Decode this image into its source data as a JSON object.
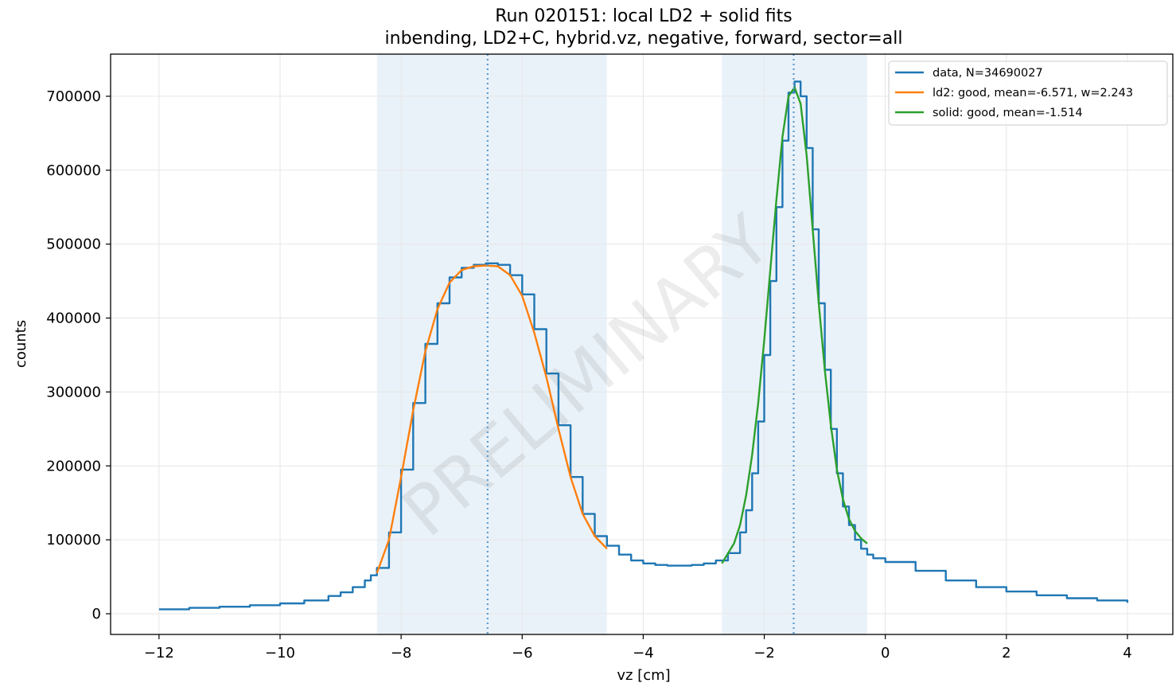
{
  "chart_data": {
    "type": "line",
    "title": "Run 020151: local LD2 + solid fits",
    "subtitle": "inbending, LD2+C, hybrid.vz, negative, forward, sector=all",
    "xlabel": "vz [cm]",
    "ylabel": "counts",
    "xlim": [
      -12.8,
      4.75
    ],
    "ylim": [
      -28000,
      757000
    ],
    "x_ticks": [
      -12,
      -10,
      -8,
      -6,
      -4,
      -2,
      0,
      2,
      4
    ],
    "x_tick_labels": [
      "−12",
      "−10",
      "−8",
      "−6",
      "−4",
      "−2",
      "0",
      "2",
      "4"
    ],
    "y_ticks": [
      0,
      100000,
      200000,
      300000,
      400000,
      500000,
      600000,
      700000
    ],
    "y_tick_labels": [
      "0",
      "100000",
      "200000",
      "300000",
      "400000",
      "500000",
      "600000",
      "700000"
    ],
    "grid": true,
    "legend_position": "top-right",
    "watermark": "PRELIMINARY",
    "shaded_regions": [
      {
        "x0": -8.4,
        "x1": -4.6,
        "color": "#dce9f5"
      },
      {
        "x0": -2.7,
        "x1": -0.3,
        "color": "#dce9f5"
      }
    ],
    "vlines": [
      {
        "x": -6.571,
        "color": "#5b9bd0"
      },
      {
        "x": -1.514,
        "color": "#5b9bd0"
      }
    ],
    "series": [
      {
        "name": "data, N=34690027",
        "color": "#1f77b4",
        "style": "step",
        "x": [
          -12,
          -11.5,
          -11,
          -10.5,
          -10,
          -9.6,
          -9.2,
          -9.0,
          -8.8,
          -8.6,
          -8.5,
          -8.4,
          -8.2,
          -8.0,
          -7.8,
          -7.6,
          -7.4,
          -7.2,
          -7.0,
          -6.8,
          -6.6,
          -6.4,
          -6.2,
          -6.0,
          -5.8,
          -5.6,
          -5.4,
          -5.2,
          -5.0,
          -4.8,
          -4.6,
          -4.4,
          -4.2,
          -4.0,
          -3.8,
          -3.6,
          -3.4,
          -3.2,
          -3.0,
          -2.8,
          -2.6,
          -2.4,
          -2.3,
          -2.2,
          -2.1,
          -2.0,
          -1.9,
          -1.8,
          -1.7,
          -1.6,
          -1.5,
          -1.4,
          -1.3,
          -1.2,
          -1.1,
          -1.0,
          -0.9,
          -0.8,
          -0.7,
          -0.6,
          -0.5,
          -0.4,
          -0.3,
          -0.2,
          0,
          0.5,
          1.0,
          1.5,
          2.0,
          2.5,
          3.0,
          3.5,
          4.0
        ],
        "y": [
          6000,
          8000,
          9500,
          11500,
          14000,
          18000,
          24000,
          29000,
          36000,
          45000,
          52000,
          62000,
          110000,
          195000,
          285000,
          365000,
          420000,
          455000,
          468000,
          472000,
          474000,
          472000,
          458000,
          432000,
          385000,
          325000,
          255000,
          185000,
          135000,
          105000,
          92000,
          80000,
          72000,
          68000,
          66000,
          65000,
          65000,
          66000,
          68000,
          72000,
          82000,
          110000,
          140000,
          190000,
          260000,
          350000,
          450000,
          550000,
          640000,
          705000,
          720000,
          700000,
          630000,
          520000,
          420000,
          330000,
          250000,
          190000,
          145000,
          120000,
          100000,
          88000,
          80000,
          75000,
          70000,
          58000,
          45000,
          36000,
          30000,
          25000,
          21000,
          18000,
          15000
        ]
      },
      {
        "name": "ld2: good, mean=-6.571, w=2.243",
        "color": "#ff7f0e",
        "style": "line",
        "x": [
          -8.4,
          -8.2,
          -8.0,
          -7.8,
          -7.6,
          -7.4,
          -7.2,
          -7.0,
          -6.8,
          -6.6,
          -6.4,
          -6.2,
          -6.0,
          -5.8,
          -5.6,
          -5.4,
          -5.2,
          -5.0,
          -4.8,
          -4.6
        ],
        "y": [
          55000,
          100000,
          185000,
          275000,
          355000,
          412000,
          448000,
          465000,
          470000,
          471000,
          470000,
          458000,
          430000,
          380000,
          320000,
          250000,
          185000,
          135000,
          105000,
          88000
        ]
      },
      {
        "name": "solid: good, mean=-1.514",
        "color": "#2ca02c",
        "style": "line",
        "x": [
          -2.7,
          -2.5,
          -2.4,
          -2.3,
          -2.2,
          -2.1,
          -2.0,
          -1.9,
          -1.8,
          -1.7,
          -1.6,
          -1.5,
          -1.4,
          -1.3,
          -1.2,
          -1.1,
          -1.0,
          -0.9,
          -0.8,
          -0.7,
          -0.6,
          -0.5,
          -0.4,
          -0.3
        ],
        "y": [
          68000,
          95000,
          120000,
          160000,
          215000,
          285000,
          370000,
          465000,
          560000,
          645000,
          700000,
          712000,
          690000,
          620000,
          520000,
          420000,
          330000,
          255000,
          195000,
          155000,
          128000,
          112000,
          102000,
          95000
        ]
      }
    ]
  }
}
